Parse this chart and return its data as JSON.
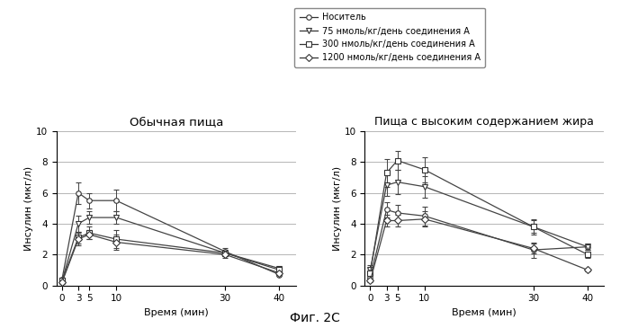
{
  "title_left": "Обычная пища",
  "title_right": "Пища с высоким содержанием жира",
  "xlabel": "Время (мин)",
  "ylabel": "Инсулин (мкг/л)",
  "fig_title": "Фиг. 2С",
  "xvals": [
    0,
    3,
    5,
    10,
    30,
    40
  ],
  "xlim": [
    -1,
    43
  ],
  "ylim": [
    0,
    10
  ],
  "yticks": [
    0,
    2,
    4,
    6,
    8,
    10
  ],
  "xticks": [
    0,
    3,
    5,
    10,
    30,
    40
  ],
  "left_series": {
    "носитель": {
      "y": [
        0.4,
        6.0,
        5.5,
        5.5,
        2.2,
        0.7
      ],
      "err": [
        0.1,
        0.7,
        0.5,
        0.7,
        0.2,
        0.1
      ]
    },
    "75": {
      "y": [
        0.3,
        4.0,
        4.4,
        4.4,
        2.1,
        1.1
      ],
      "err": [
        0.1,
        0.5,
        0.4,
        0.4,
        0.2,
        0.1
      ]
    },
    "300": {
      "y": [
        0.3,
        3.1,
        3.4,
        3.0,
        2.1,
        1.0
      ],
      "err": [
        0.1,
        0.4,
        0.4,
        0.6,
        0.2,
        0.1
      ]
    },
    "1200": {
      "y": [
        0.2,
        3.0,
        3.3,
        2.8,
        2.0,
        0.8
      ],
      "err": [
        0.1,
        0.4,
        0.3,
        0.5,
        0.2,
        0.1
      ]
    }
  },
  "right_series": {
    "носитель": {
      "y": [
        0.5,
        4.9,
        4.7,
        4.5,
        2.3,
        2.5
      ],
      "err": [
        0.2,
        0.5,
        0.5,
        0.6,
        0.5,
        0.2
      ]
    },
    "75": {
      "y": [
        1.0,
        6.5,
        6.7,
        6.4,
        3.8,
        2.5
      ],
      "err": [
        0.3,
        0.7,
        0.8,
        0.7,
        0.4,
        0.2
      ]
    },
    "300": {
      "y": [
        0.8,
        7.3,
        8.1,
        7.5,
        3.8,
        2.0
      ],
      "err": [
        0.3,
        0.9,
        0.6,
        0.8,
        0.5,
        0.2
      ]
    },
    "1200": {
      "y": [
        0.3,
        4.2,
        4.2,
        4.3,
        2.4,
        1.0
      ],
      "err": [
        0.1,
        0.4,
        0.4,
        0.5,
        0.3,
        0.1
      ]
    }
  },
  "legend_labels": [
    "Носитель",
    "75 нмоль/кг/день соединения А",
    "300 нмоль/кг/день соединения А",
    "1200 нмоль/кг/день соединения А"
  ],
  "markers": [
    "o",
    "v",
    "s",
    "D"
  ],
  "colors": [
    "#444444",
    "#444444",
    "#444444",
    "#444444"
  ],
  "bg_color": "#ffffff",
  "grid_color": "#aaaaaa"
}
